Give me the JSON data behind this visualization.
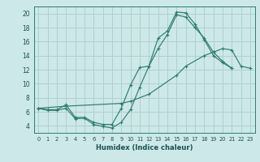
{
  "xlabel": "Humidex (Indice chaleur)",
  "background_color": "#cde8e8",
  "grid_color": "#afd0d0",
  "line_color": "#2e7d6e",
  "xlim": [
    -0.5,
    23.5
  ],
  "ylim": [
    3.0,
    21.0
  ],
  "xticks": [
    0,
    1,
    2,
    3,
    4,
    5,
    6,
    7,
    8,
    9,
    10,
    11,
    12,
    13,
    14,
    15,
    16,
    17,
    18,
    19,
    20,
    21,
    22,
    23
  ],
  "yticks": [
    4,
    6,
    8,
    10,
    12,
    14,
    16,
    18,
    20
  ],
  "curve1_x": [
    0,
    1,
    2,
    3,
    4,
    5,
    6,
    7,
    8,
    9,
    10,
    11,
    12,
    13,
    14,
    15,
    16,
    17,
    18,
    19,
    20,
    21
  ],
  "curve1_y": [
    6.5,
    6.2,
    6.2,
    6.5,
    5.0,
    5.1,
    4.2,
    3.9,
    3.7,
    4.5,
    6.3,
    9.5,
    12.5,
    16.5,
    17.5,
    20.2,
    20.1,
    18.5,
    16.3,
    14.0,
    13.0,
    12.2
  ],
  "curve2_x": [
    0,
    1,
    2,
    3,
    4,
    5,
    6,
    7,
    8,
    9,
    10,
    11,
    12,
    13,
    14,
    15,
    16,
    17,
    18,
    19,
    20,
    21
  ],
  "curve2_y": [
    6.5,
    6.3,
    6.3,
    7.0,
    5.2,
    5.2,
    4.5,
    4.2,
    4.2,
    6.5,
    9.8,
    12.3,
    12.5,
    15.0,
    17.0,
    19.8,
    19.5,
    18.0,
    16.5,
    14.5,
    13.2,
    12.2
  ],
  "curve3_x": [
    0,
    3,
    9,
    10,
    12,
    15,
    16,
    18,
    19,
    20,
    21,
    22,
    23
  ],
  "curve3_y": [
    6.5,
    6.8,
    7.2,
    7.5,
    8.5,
    11.2,
    12.5,
    14.0,
    14.5,
    15.0,
    14.8,
    12.5,
    12.2
  ]
}
